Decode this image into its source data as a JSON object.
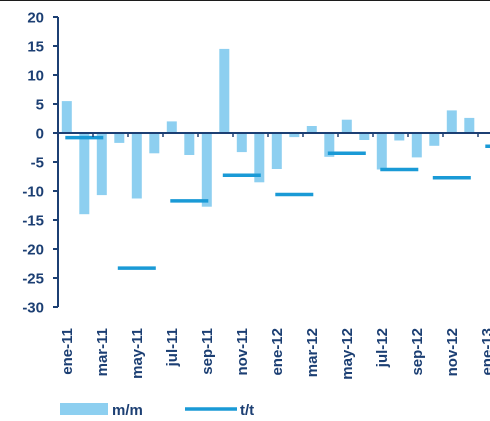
{
  "chart_data": {
    "type": "bar",
    "ylim": [
      -30,
      20
    ],
    "yticks": [
      20,
      15,
      10,
      5,
      0,
      -5,
      -10,
      -15,
      -20,
      -25,
      -30
    ],
    "colors": {
      "bar": "#8dcff0",
      "line": "#1a9ad6",
      "axis": "#1c3f73"
    },
    "legend_position": "bottom-left",
    "grid": false,
    "months": [
      "ene-11",
      "feb-11",
      "mar-11",
      "abr-11",
      "may-11",
      "jun-11",
      "jul-11",
      "ago-11",
      "sep-11",
      "oct-11",
      "nov-11",
      "dic-11",
      "ene-12",
      "feb-12",
      "mar-12",
      "abr-12",
      "may-12",
      "jun-12",
      "jul-12",
      "ago-12",
      "sep-12",
      "oct-12",
      "nov-12",
      "dic-12",
      "ene-13"
    ],
    "x_tick_labels": [
      "ene-11",
      "mar-11",
      "may-11",
      "jul-11",
      "sep-11",
      "nov-11",
      "ene-12",
      "mar-12",
      "may-12",
      "jul-12",
      "sep-12",
      "nov-12",
      "ene-13"
    ],
    "series": [
      {
        "name": "m/m",
        "kind": "bar",
        "values": [
          5.5,
          -14.0,
          -10.7,
          -1.7,
          -11.3,
          -3.5,
          2.0,
          -3.8,
          -12.7,
          14.5,
          -3.3,
          -8.5,
          -6.2,
          -0.7,
          1.2,
          -4.1,
          2.3,
          -1.2,
          -6.3,
          -1.3,
          -4.2,
          -2.2,
          3.9,
          2.6,
          0.0
        ]
      },
      {
        "name": "t/t",
        "kind": "line",
        "points": [
          {
            "month": "feb-11",
            "value": -0.8
          },
          {
            "month": "may-11",
            "value": -23.3
          },
          {
            "month": "ago-11",
            "value": -11.7
          },
          {
            "month": "nov-11",
            "value": -7.3
          },
          {
            "month": "feb-12",
            "value": -10.6
          },
          {
            "month": "may-12",
            "value": -3.5
          },
          {
            "month": "ago-12",
            "value": -6.3
          },
          {
            "month": "nov-12",
            "value": -7.7
          },
          {
            "month": "feb-13",
            "value": -2.3
          }
        ]
      }
    ],
    "legend": [
      {
        "label": "m/m",
        "kind": "bar"
      },
      {
        "label": "t/t",
        "kind": "line"
      }
    ]
  }
}
